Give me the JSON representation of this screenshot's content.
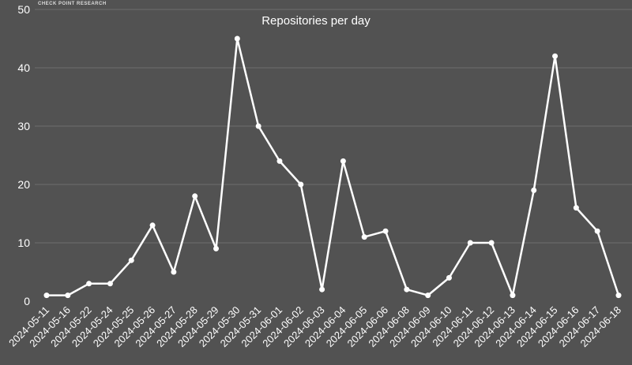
{
  "brand": "CHECK POINT RESEARCH",
  "chart_data": {
    "type": "line",
    "title": "Repositories per day",
    "xlabel": "",
    "ylabel": "",
    "ylim": [
      0,
      50
    ],
    "yticks": [
      0,
      10,
      20,
      30,
      40,
      50
    ],
    "grid": true,
    "categories": [
      "2024-05-11",
      "2024-05-16",
      "2024-05-22",
      "2024-05-24",
      "2024-05-25",
      "2024-05-26",
      "2024-05-27",
      "2024-05-28",
      "2024-05-29",
      "2024-05-30",
      "2024-05-31",
      "2024-06-01",
      "2024-06-02",
      "2024-06-03",
      "2024-06-04",
      "2024-06-05",
      "2024-06-06",
      "2024-06-08",
      "2024-06-09",
      "2024-06-10",
      "2024-06-11",
      "2024-06-12",
      "2024-06-13",
      "2024-06-14",
      "2024-06-15",
      "2024-06-16",
      "2024-06-17",
      "2024-06-18"
    ],
    "values": [
      1,
      1,
      3,
      3,
      7,
      13,
      5,
      18,
      9,
      45,
      30,
      24,
      20,
      2,
      24,
      11,
      12,
      2,
      1,
      4,
      10,
      10,
      1,
      19,
      42,
      16,
      12,
      1
    ],
    "colors": {
      "background": "#525252",
      "line": "#ffffff",
      "grid": "#6e6e6e",
      "text": "#ffffff"
    }
  }
}
